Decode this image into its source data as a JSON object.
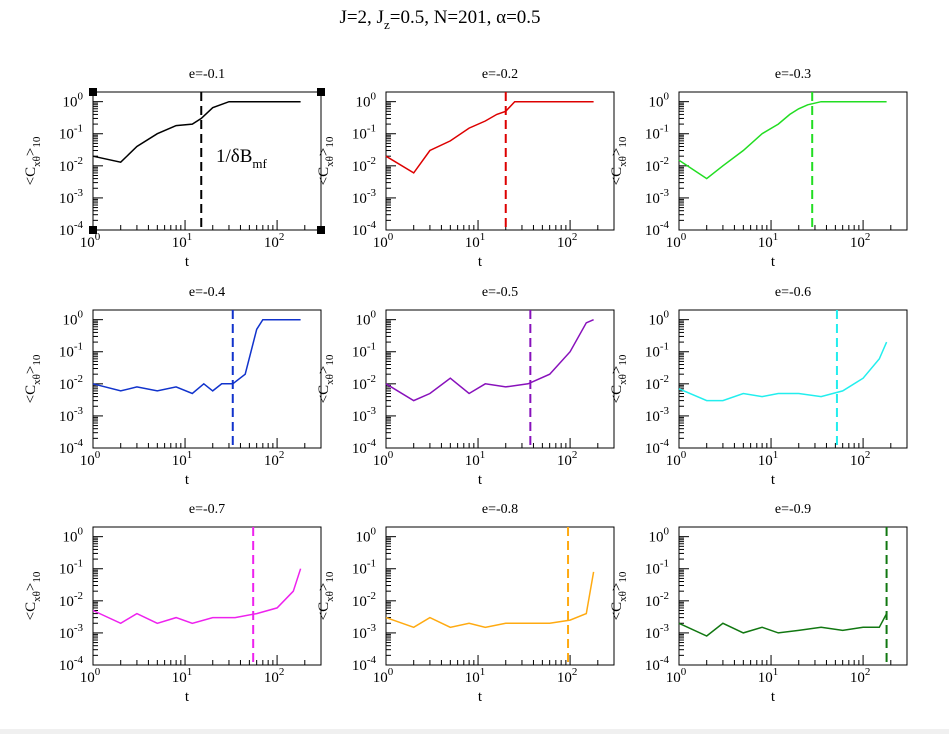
{
  "figure_title": {
    "J": "J=2, J",
    "Jz_sub": "z",
    "rest": "=0.5, N=201, α=0.5"
  },
  "annotation": {
    "text": "1/δB",
    "sub": "mf"
  },
  "chart_data": [
    {
      "type": "line",
      "title": "e=-0.1",
      "color": "#000000",
      "xlabel": "t",
      "ylabel": "<C_xθ>_10",
      "xscale": "log",
      "yscale": "log",
      "xlim": [
        1,
        300
      ],
      "ylim": [
        0.0001,
        2
      ],
      "vline": 15,
      "series": [
        {
          "x": [
            1,
            2,
            3,
            5,
            8,
            12,
            15,
            20,
            30,
            60,
            100,
            180
          ],
          "y": [
            0.02,
            0.013,
            0.04,
            0.1,
            0.18,
            0.2,
            0.3,
            0.65,
            1,
            1,
            1,
            1
          ]
        }
      ],
      "xticks": [
        "10",
        "10",
        "10"
      ],
      "xtick_exp": [
        "0",
        "1",
        "2"
      ],
      "yticks": [
        "10",
        "10",
        "10",
        "10",
        "10"
      ],
      "ytick_exp": [
        "0",
        "-1",
        "-2",
        "-3",
        "-4"
      ]
    },
    {
      "type": "line",
      "title": "e=-0.2",
      "color": "#dd0000",
      "xlabel": "t",
      "ylabel": "<C_xθ>_10",
      "xscale": "log",
      "yscale": "log",
      "xlim": [
        1,
        300
      ],
      "ylim": [
        0.0001,
        2
      ],
      "vline": 20,
      "series": [
        {
          "x": [
            1,
            2,
            3,
            5,
            8,
            12,
            16,
            20,
            25,
            40,
            100,
            180
          ],
          "y": [
            0.02,
            0.006,
            0.03,
            0.06,
            0.15,
            0.25,
            0.4,
            0.5,
            1,
            1,
            1,
            1
          ]
        }
      ],
      "xticks": [
        "10",
        "10",
        "10"
      ],
      "xtick_exp": [
        "0",
        "1",
        "2"
      ],
      "yticks": [
        "10",
        "10",
        "10",
        "10",
        "10"
      ],
      "ytick_exp": [
        "0",
        "-1",
        "-2",
        "-3",
        "-4"
      ]
    },
    {
      "type": "line",
      "title": "e=-0.3",
      "color": "#22dd22",
      "xlabel": "t",
      "ylabel": "<C_xθ>_10",
      "xscale": "log",
      "yscale": "log",
      "xlim": [
        1,
        300
      ],
      "ylim": [
        0.0001,
        2
      ],
      "vline": 28,
      "series": [
        {
          "x": [
            1,
            2,
            3,
            5,
            8,
            12,
            16,
            20,
            25,
            35,
            60,
            180
          ],
          "y": [
            0.015,
            0.004,
            0.01,
            0.03,
            0.1,
            0.2,
            0.4,
            0.6,
            0.8,
            1,
            1,
            1
          ]
        }
      ],
      "xticks": [
        "10",
        "10",
        "10"
      ],
      "xtick_exp": [
        "0",
        "1",
        "2"
      ],
      "yticks": [
        "10",
        "10",
        "10",
        "10",
        "10"
      ],
      "ytick_exp": [
        "0",
        "-1",
        "-2",
        "-3",
        "-4"
      ]
    },
    {
      "type": "line",
      "title": "e=-0.4",
      "color": "#1133cc",
      "xlabel": "t",
      "ylabel": "<C_xθ>_10",
      "xscale": "log",
      "yscale": "log",
      "xlim": [
        1,
        300
      ],
      "ylim": [
        0.0001,
        2
      ],
      "vline": 33,
      "series": [
        {
          "x": [
            1,
            2,
            3,
            5,
            8,
            12,
            16,
            20,
            25,
            33,
            45,
            60,
            70,
            100,
            180
          ],
          "y": [
            0.01,
            0.006,
            0.008,
            0.006,
            0.008,
            0.005,
            0.01,
            0.006,
            0.01,
            0.01,
            0.02,
            0.5,
            1,
            1,
            1
          ]
        }
      ],
      "xticks": [
        "10",
        "10",
        "10"
      ],
      "xtick_exp": [
        "0",
        "1",
        "2"
      ],
      "yticks": [
        "10",
        "10",
        "10",
        "10",
        "10"
      ],
      "ytick_exp": [
        "0",
        "-1",
        "-2",
        "-3",
        "-4"
      ]
    },
    {
      "type": "line",
      "title": "e=-0.5",
      "color": "#8811bb",
      "xlabel": "t",
      "ylabel": "<C_xθ>_10",
      "xscale": "log",
      "yscale": "log",
      "xlim": [
        1,
        300
      ],
      "ylim": [
        0.0001,
        2
      ],
      "vline": 37,
      "series": [
        {
          "x": [
            1,
            2,
            3,
            5,
            8,
            12,
            20,
            35,
            60,
            100,
            150,
            180
          ],
          "y": [
            0.01,
            0.003,
            0.005,
            0.015,
            0.005,
            0.01,
            0.008,
            0.01,
            0.02,
            0.1,
            0.8,
            1
          ]
        }
      ],
      "xticks": [
        "10",
        "10",
        "10"
      ],
      "xtick_exp": [
        "0",
        "1",
        "2"
      ],
      "yticks": [
        "10",
        "10",
        "10",
        "10",
        "10"
      ],
      "ytick_exp": [
        "0",
        "-1",
        "-2",
        "-3",
        "-4"
      ]
    },
    {
      "type": "line",
      "title": "e=-0.6",
      "color": "#22eeee",
      "xlabel": "t",
      "ylabel": "<C_xθ>_10",
      "xscale": "log",
      "yscale": "log",
      "xlim": [
        1,
        300
      ],
      "ylim": [
        0.0001,
        2
      ],
      "vline": 52,
      "series": [
        {
          "x": [
            1,
            2,
            3,
            5,
            8,
            12,
            20,
            35,
            60,
            100,
            150,
            180
          ],
          "y": [
            0.007,
            0.003,
            0.003,
            0.005,
            0.004,
            0.005,
            0.005,
            0.004,
            0.006,
            0.015,
            0.06,
            0.2
          ]
        }
      ],
      "xticks": [
        "10",
        "10",
        "10"
      ],
      "xtick_exp": [
        "0",
        "1",
        "2"
      ],
      "yticks": [
        "10",
        "10",
        "10",
        "10",
        "10"
      ],
      "ytick_exp": [
        "0",
        "-1",
        "-2",
        "-3",
        "-4"
      ]
    },
    {
      "type": "line",
      "title": "e=-0.7",
      "color": "#ee22ee",
      "xlabel": "t",
      "ylabel": "<C_xθ>_10",
      "xscale": "log",
      "yscale": "log",
      "xlim": [
        1,
        300
      ],
      "ylim": [
        0.0001,
        2
      ],
      "vline": 55,
      "series": [
        {
          "x": [
            1,
            2,
            3,
            5,
            8,
            12,
            20,
            35,
            60,
            100,
            150,
            180
          ],
          "y": [
            0.005,
            0.002,
            0.004,
            0.002,
            0.003,
            0.002,
            0.003,
            0.003,
            0.004,
            0.006,
            0.02,
            0.1
          ]
        }
      ],
      "xticks": [
        "10",
        "10",
        "10"
      ],
      "xtick_exp": [
        "0",
        "1",
        "2"
      ],
      "yticks": [
        "10",
        "10",
        "10",
        "10",
        "10"
      ],
      "ytick_exp": [
        "0",
        "-1",
        "-2",
        "-3",
        "-4"
      ]
    },
    {
      "type": "line",
      "title": "e=-0.8",
      "color": "#ffaa11",
      "xlabel": "t",
      "ylabel": "<C_xθ>_10",
      "xscale": "log",
      "yscale": "log",
      "xlim": [
        1,
        300
      ],
      "ylim": [
        0.0001,
        2
      ],
      "vline": 95,
      "series": [
        {
          "x": [
            1,
            2,
            3,
            5,
            8,
            12,
            20,
            35,
            60,
            100,
            150,
            180
          ],
          "y": [
            0.003,
            0.0015,
            0.003,
            0.0015,
            0.002,
            0.0015,
            0.002,
            0.002,
            0.002,
            0.0025,
            0.004,
            0.08
          ]
        }
      ],
      "xticks": [
        "10",
        "10",
        "10"
      ],
      "xtick_exp": [
        "0",
        "1",
        "2"
      ],
      "yticks": [
        "10",
        "10",
        "10",
        "10",
        "10"
      ],
      "ytick_exp": [
        "0",
        "-1",
        "-2",
        "-3",
        "-4"
      ]
    },
    {
      "type": "line",
      "title": "e=-0.9",
      "color": "#117711",
      "xlabel": "t",
      "ylabel": "<C_xθ>_10",
      "xscale": "log",
      "yscale": "log",
      "xlim": [
        1,
        300
      ],
      "ylim": [
        0.0001,
        2
      ],
      "vline": 180,
      "series": [
        {
          "x": [
            1,
            2,
            3,
            5,
            8,
            12,
            20,
            35,
            60,
            100,
            150,
            180
          ],
          "y": [
            0.002,
            0.0008,
            0.002,
            0.001,
            0.0015,
            0.001,
            0.0012,
            0.0015,
            0.0012,
            0.0015,
            0.0015,
            0.004
          ]
        }
      ],
      "xticks": [
        "10",
        "10",
        "10"
      ],
      "xtick_exp": [
        "0",
        "1",
        "2"
      ],
      "yticks": [
        "10",
        "10",
        "10",
        "10",
        "10"
      ],
      "ytick_exp": [
        "0",
        "-1",
        "-2",
        "-3",
        "-4"
      ]
    }
  ]
}
